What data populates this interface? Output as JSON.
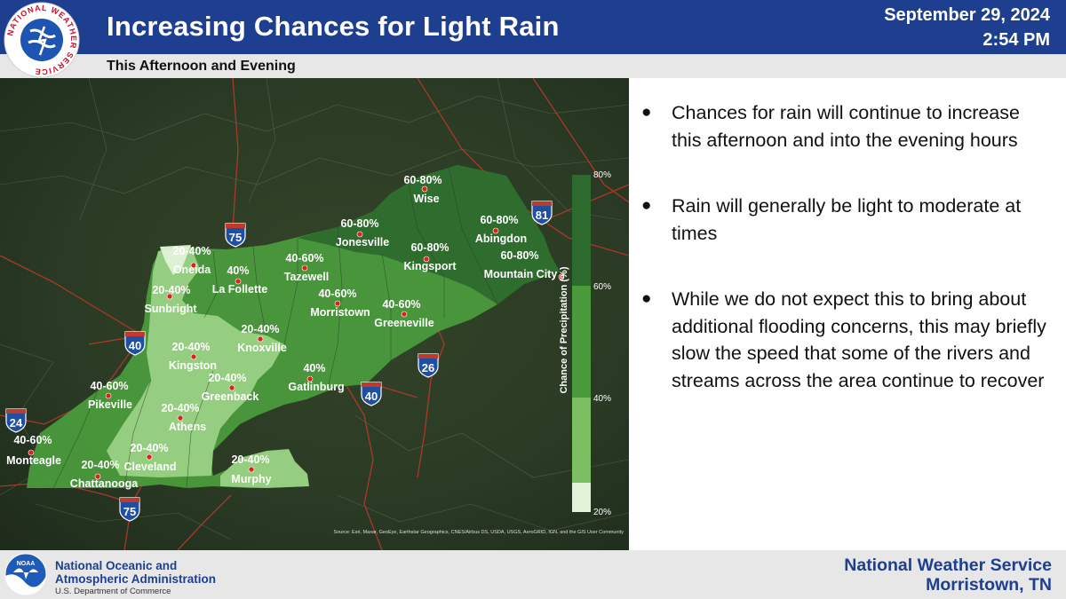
{
  "header": {
    "title": "Increasing Chances for Light Rain",
    "subtitle": "This Afternoon and Evening",
    "date": "September 29, 2024",
    "time": "2:54 PM",
    "logo_text": "NATIONAL WEATHER SERVICE"
  },
  "map": {
    "legend": {
      "title": "Chance of Precipitation (%)",
      "ticks": [
        "80%",
        "60%",
        "40%",
        "20%"
      ],
      "colors": [
        "#2d6a2d",
        "#4a9a3c",
        "#7cbf63",
        "#d8efcc"
      ]
    },
    "source": "Source: Esri, Maxar, GeoEye, Earthstar Geographics, CNES/Airbus DS, USDA, USGS, AeroGRID, IGN, and the GIS User Community",
    "shields": [
      "75",
      "81",
      "40",
      "26",
      "40",
      "24",
      "75"
    ],
    "locations": [
      {
        "pct": "60-80%",
        "name": "Wise"
      },
      {
        "pct": "60-80%",
        "name": "Jonesville"
      },
      {
        "pct": "60-80%",
        "name": "Abingdon"
      },
      {
        "pct": "60-80%",
        "name": "Kingsport"
      },
      {
        "pct": "60-80%",
        "name": "Mountain City"
      },
      {
        "pct": "20-40%",
        "name": "Oneida"
      },
      {
        "pct": "40%",
        "name": "La Follette"
      },
      {
        "pct": "40-60%",
        "name": "Tazewell"
      },
      {
        "pct": "20-40%",
        "name": "Sunbright"
      },
      {
        "pct": "40-60%",
        "name": "Morristown"
      },
      {
        "pct": "40-60%",
        "name": "Greeneville"
      },
      {
        "pct": "20-40%",
        "name": "Knoxville"
      },
      {
        "pct": "20-40%",
        "name": "Kingston"
      },
      {
        "pct": "40%",
        "name": "Gatlinburg"
      },
      {
        "pct": "20-40%",
        "name": "Greenback"
      },
      {
        "pct": "40-60%",
        "name": "Pikeville"
      },
      {
        "pct": "20-40%",
        "name": "Athens"
      },
      {
        "pct": "40-60%",
        "name": "Monteagle"
      },
      {
        "pct": "20-40%",
        "name": "Cleveland"
      },
      {
        "pct": "20-40%",
        "name": "Chattanooga"
      },
      {
        "pct": "20-40%",
        "name": "Murphy"
      }
    ]
  },
  "bullets": [
    "Chances for rain will continue to increase this afternoon and into the evening hours",
    "Rain will generally be light to moderate at times",
    "While we do not expect this to bring about additional flooding concerns, this may briefly slow the speed that some of the rivers and streams across the area continue to recover"
  ],
  "footer": {
    "noaa_line1": "National Oceanic and",
    "noaa_line2": "Atmospheric Administration",
    "noaa_dept": "U.S. Department of Commerce",
    "noaa_logo_text": "NOAA",
    "office_line1": "National Weather Service",
    "office_line2": "Morristown, TN"
  }
}
